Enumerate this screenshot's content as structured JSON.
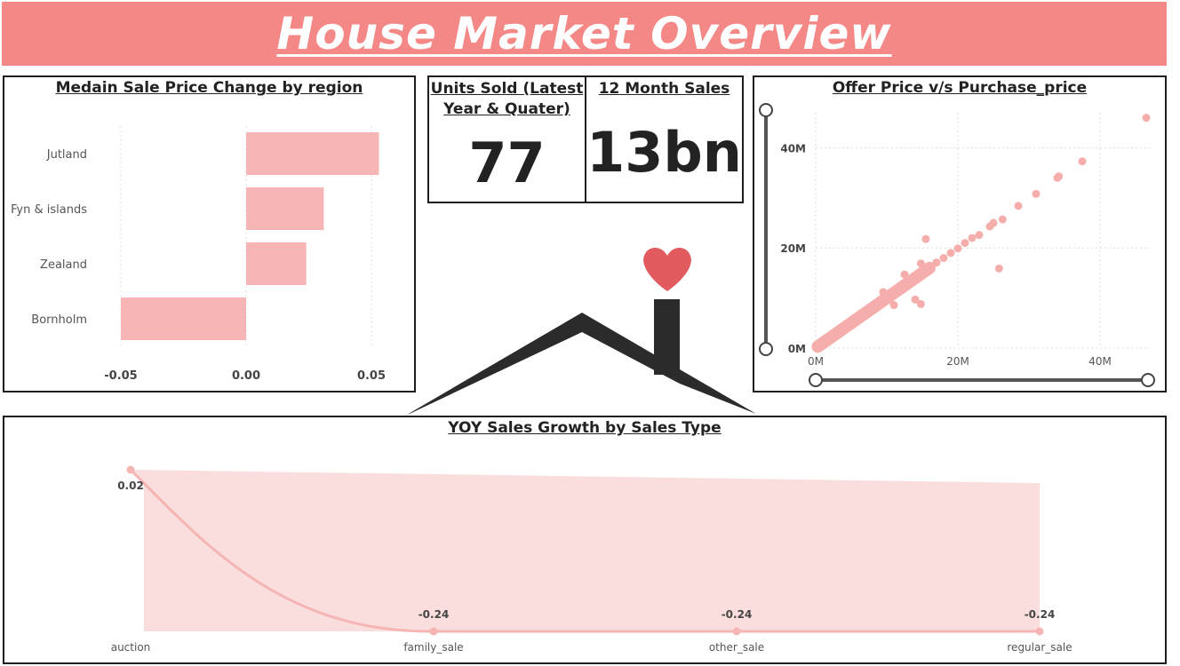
{
  "title": "House Market Overview",
  "region_chart": {
    "title": "Medain Sale Price Change by region",
    "chart_data": {
      "type": "bar",
      "orientation": "horizontal",
      "categories": [
        "Jutland",
        "Fyn & islands",
        "Zealand",
        "Bornholm"
      ],
      "values": [
        0.053,
        0.031,
        0.024,
        -0.05
      ],
      "xticks": [
        "-0.05",
        "0.00",
        "0.05"
      ],
      "xlim": [
        -0.05,
        0.055
      ],
      "grid": true,
      "color": "#f7b6b5"
    }
  },
  "kpi_units": {
    "title": "Units Sold (Latest Year & Quater)",
    "value": "77"
  },
  "kpi_sales": {
    "title": "12 Month Sales",
    "value": "13bn"
  },
  "scatter_chart": {
    "title": "Offer Price v/s Purchase_price",
    "chart_data": {
      "type": "scatter",
      "xlim": [
        0,
        47000000
      ],
      "ylim": [
        0,
        47000000
      ],
      "xticks": [
        "0M",
        "20M",
        "40M"
      ],
      "yticks": [
        "0M",
        "20M",
        "40M"
      ],
      "grid": true,
      "color": "#f5aeac",
      "points": [
        [
          46500000,
          46000000
        ],
        [
          37500000,
          37300000
        ],
        [
          34200000,
          34300000
        ],
        [
          34000000,
          34000000
        ],
        [
          31000000,
          30800000
        ],
        [
          28500000,
          28400000
        ],
        [
          26300000,
          25700000
        ],
        [
          25800000,
          15900000
        ],
        [
          25000000,
          25000000
        ],
        [
          24500000,
          24300000
        ],
        [
          23000000,
          22600000
        ],
        [
          22000000,
          22000000
        ],
        [
          21000000,
          21000000
        ],
        [
          20000000,
          19900000
        ],
        [
          19000000,
          19000000
        ],
        [
          18000000,
          18000000
        ],
        [
          17000000,
          17100000
        ],
        [
          16000000,
          16200000
        ],
        [
          15000000,
          15000000
        ],
        [
          15500000,
          21800000
        ],
        [
          14000000,
          14000000
        ],
        [
          13000000,
          13000000
        ],
        [
          12000000,
          12000000
        ],
        [
          11000000,
          11000000
        ],
        [
          10000000,
          10000000
        ],
        [
          9000000,
          9000000
        ],
        [
          8000000,
          8000000
        ],
        [
          7000000,
          7000000
        ],
        [
          6000000,
          6000000
        ],
        [
          5000000,
          5000000
        ],
        [
          4000000,
          4000000
        ],
        [
          3000000,
          3000000
        ],
        [
          2000000,
          2000000
        ],
        [
          1000000,
          1000000
        ],
        [
          14800000,
          8800000
        ],
        [
          14000000,
          9700000
        ],
        [
          14800000,
          16900000
        ],
        [
          11000000,
          8600000
        ],
        [
          12500000,
          14700000
        ],
        [
          9500000,
          11200000
        ]
      ]
    }
  },
  "yoy_chart": {
    "title": "YOY Sales Growth by Sales Type",
    "chart_data": {
      "type": "area",
      "categories": [
        "auction",
        "family_sale",
        "other_sale",
        "regular_sale"
      ],
      "values": [
        0.02,
        -0.24,
        -0.24,
        -0.24
      ],
      "labels": [
        "0.02",
        "-0.24",
        "-0.24",
        "-0.24"
      ],
      "color": "#f5b5b4"
    }
  }
}
